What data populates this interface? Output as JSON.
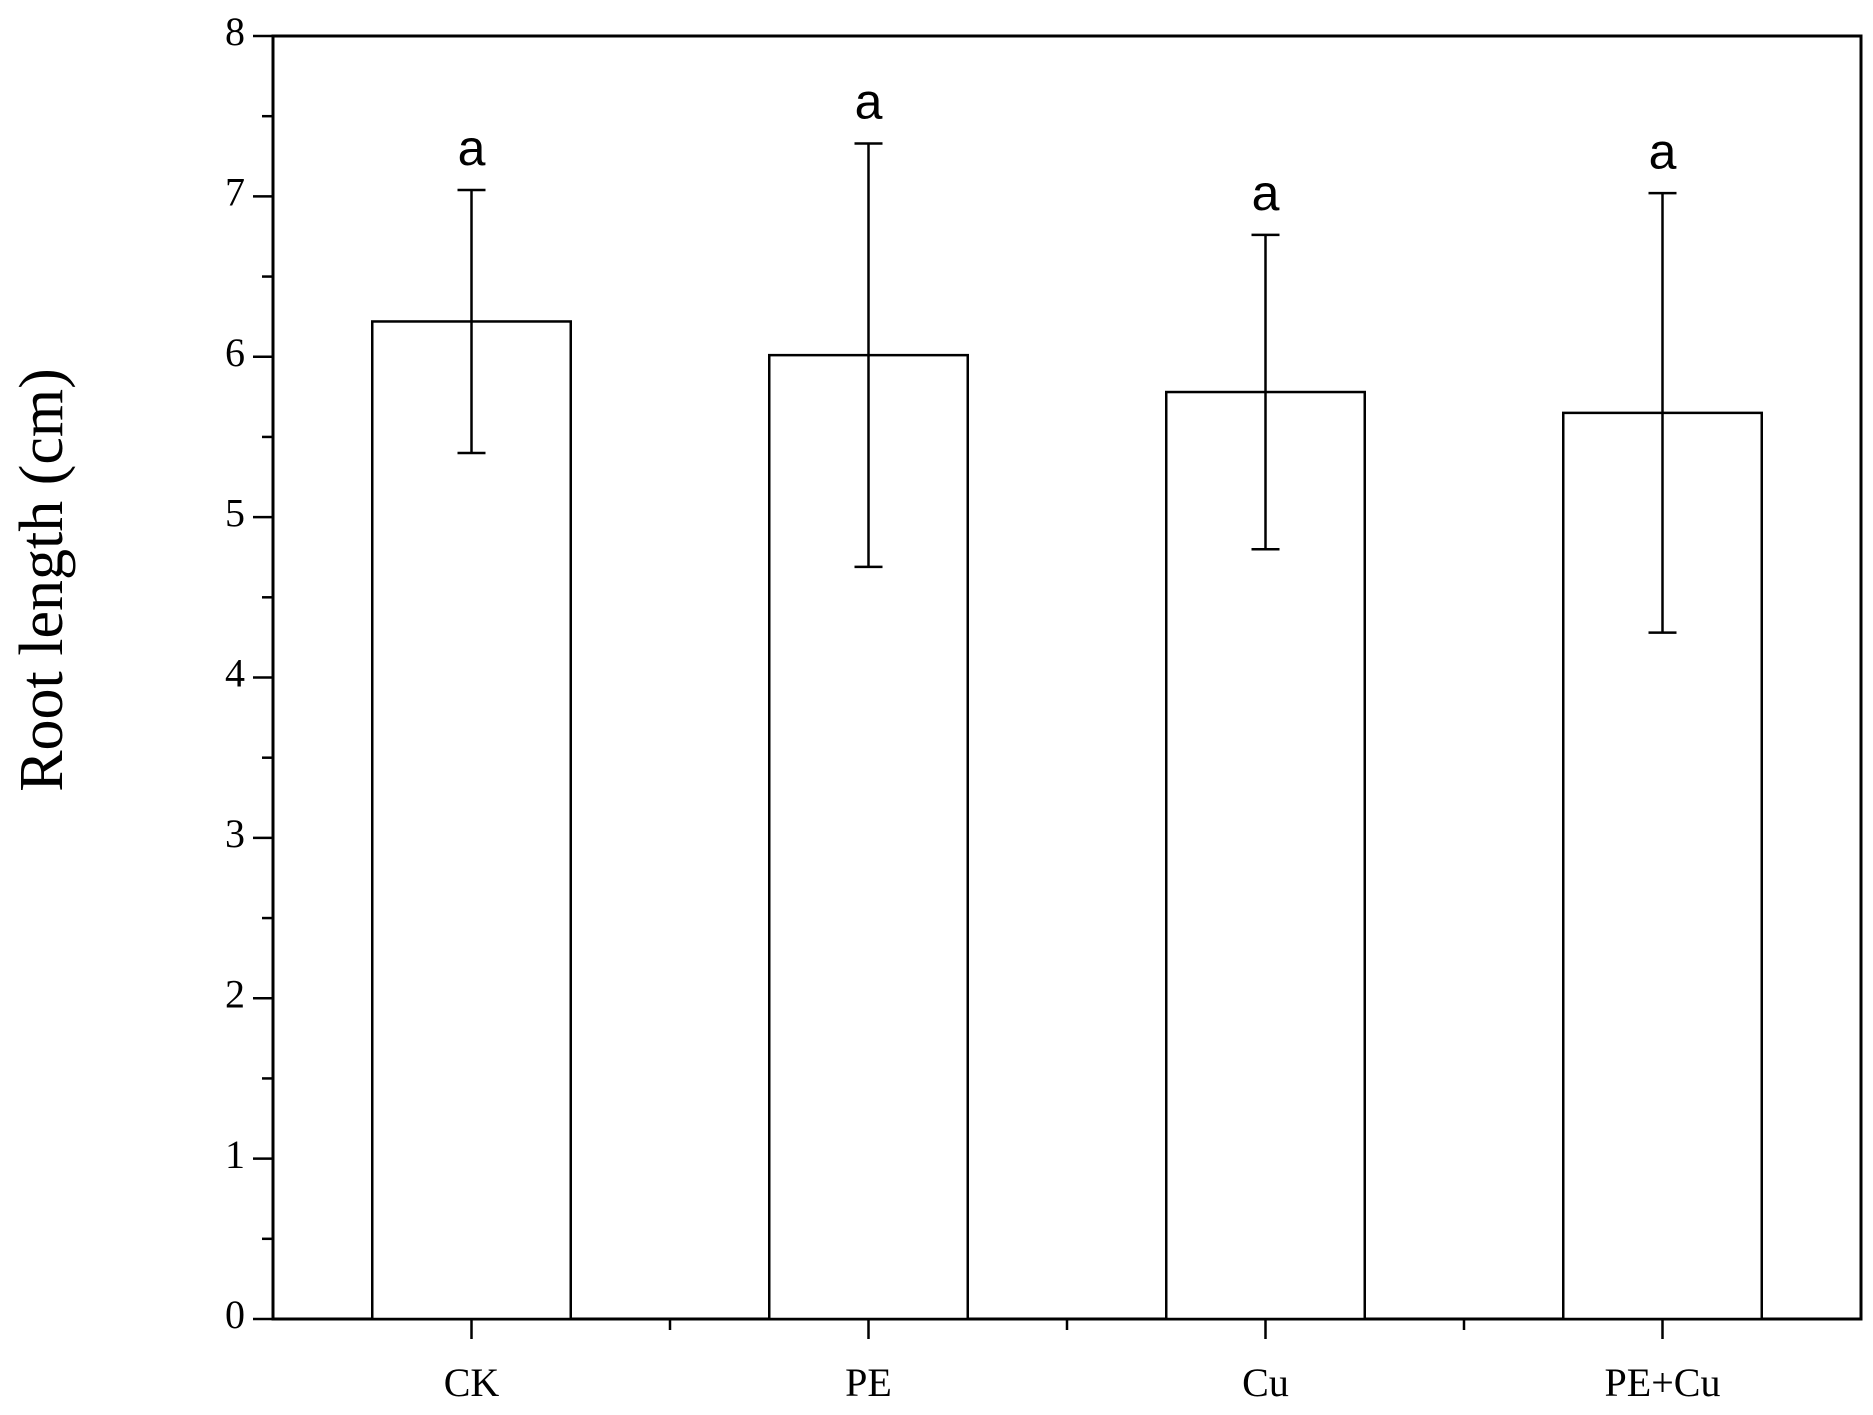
{
  "chart_data": {
    "type": "bar",
    "y_label": "Root length (cm)",
    "categories": [
      "CK",
      "PE",
      "Cu",
      "PE+Cu"
    ],
    "values": [
      6.22,
      6.01,
      5.78,
      5.65
    ],
    "errors": [
      0.82,
      1.32,
      0.98,
      1.37
    ],
    "significance_labels": [
      "a",
      "a",
      "a",
      "a"
    ],
    "color": "#ffffff",
    "ylim": [
      0,
      8
    ],
    "yticks": [
      0,
      1,
      2,
      3,
      4,
      5,
      6,
      7,
      8
    ],
    "grid": false
  }
}
